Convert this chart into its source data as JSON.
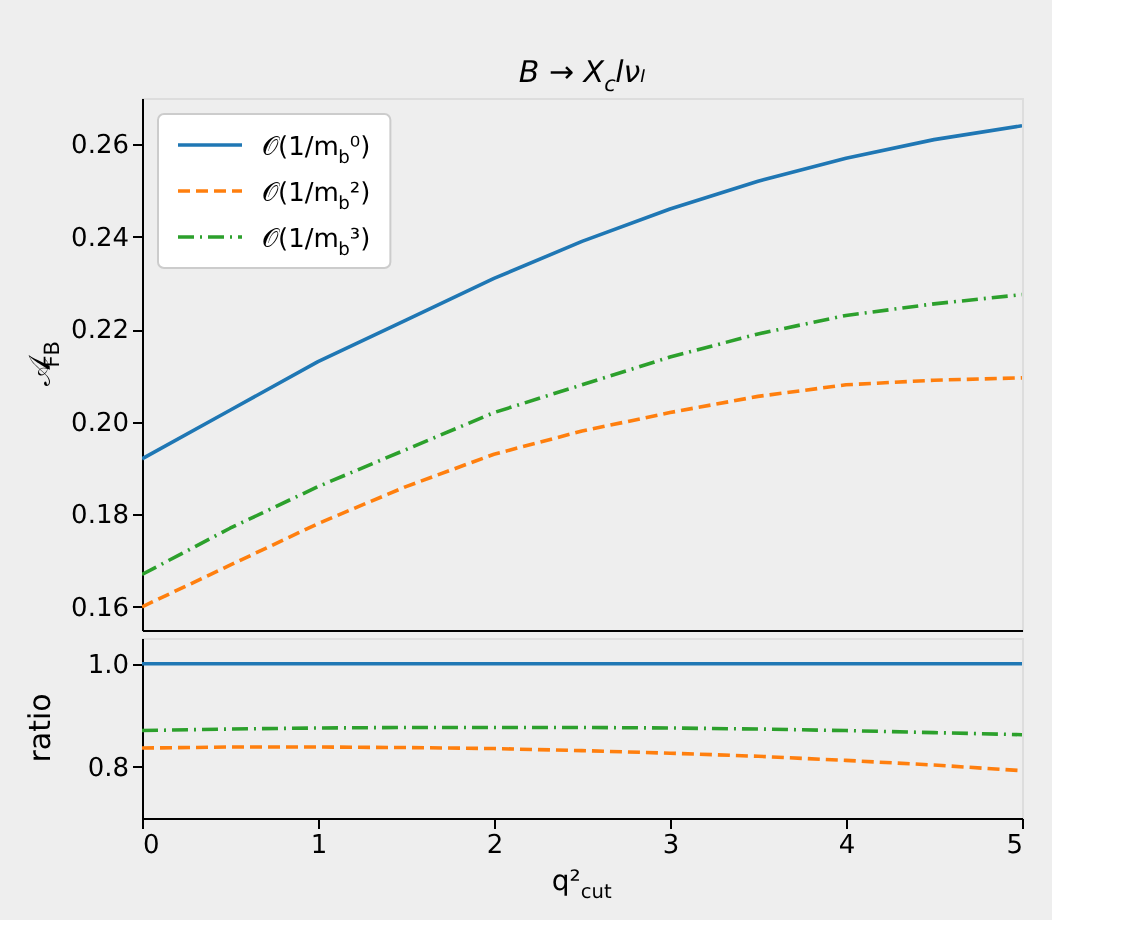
{
  "chart_data": [
    {
      "type": "line",
      "title": "B → X$_{c}$lνₗ",
      "ylabel": "𝒜$_{FB}$",
      "x": [
        0,
        0.5,
        1,
        1.5,
        2,
        2.5,
        3,
        3.5,
        4,
        4.5,
        5
      ],
      "xlim": [
        0,
        5
      ],
      "xticks": [
        0,
        1,
        2,
        3,
        4,
        5
      ],
      "ylim": [
        0.155,
        0.27
      ],
      "yticks": [
        0.16,
        0.18,
        {
          "value": 0.2,
          "label": "0.20"
        },
        0.22,
        0.24,
        0.26
      ],
      "grid": false,
      "legend": "top left",
      "tick_labels": "y",
      "series": [
        {
          "name": "𝒪(1/m$_{b}$⁰)",
          "color": "#1f77b4",
          "line_style": "solid",
          "values": [
            0.192,
            0.2025,
            0.213,
            0.222,
            0.231,
            0.239,
            0.246,
            0.252,
            0.257,
            0.261,
            0.264
          ]
        },
        {
          "name": "𝒪(1/m$_{b}$²)",
          "color": "#ff7f0e",
          "line_style": "dashed",
          "values": [
            0.16,
            0.169,
            0.178,
            0.186,
            0.193,
            0.198,
            0.202,
            0.2055,
            0.208,
            0.209,
            0.2095
          ]
        },
        {
          "name": "𝒪(1/m$_{b}$³)",
          "color": "#2ca02c",
          "line_style": "dashdot",
          "values": [
            0.167,
            0.177,
            0.186,
            0.194,
            0.202,
            0.208,
            0.214,
            0.219,
            0.223,
            0.2255,
            0.2275
          ]
        }
      ]
    },
    {
      "type": "line",
      "xlabel": "q²$_{cut}$",
      "ylabel": "ratio",
      "x": [
        0,
        0.5,
        1,
        1.5,
        2,
        2.5,
        3,
        3.5,
        4,
        4.5,
        5
      ],
      "xlim": [
        0,
        5
      ],
      "xticks": [
        0,
        1,
        2,
        3,
        4,
        5
      ],
      "ylim": [
        0.7,
        1.05
      ],
      "yticks": [
        0.8,
        {
          "value": 1.0,
          "label": "1.0"
        }
      ],
      "grid": false,
      "series": [
        {
          "color": "#1f77b4",
          "line_style": "solid",
          "values": [
            1.0,
            1.0,
            1.0,
            1.0,
            1.0,
            1.0,
            1.0,
            1.0,
            1.0,
            1.0,
            1.0
          ]
        },
        {
          "color": "#ff7f0e",
          "line_style": "dashed",
          "values": [
            0.836,
            0.838,
            0.838,
            0.837,
            0.835,
            0.831,
            0.826,
            0.82,
            0.812,
            0.803,
            0.792
          ]
        },
        {
          "color": "#2ca02c",
          "line_style": "dashdot",
          "values": [
            0.87,
            0.873,
            0.875,
            0.876,
            0.876,
            0.876,
            0.875,
            0.873,
            0.87,
            0.866,
            0.862
          ]
        }
      ]
    }
  ]
}
